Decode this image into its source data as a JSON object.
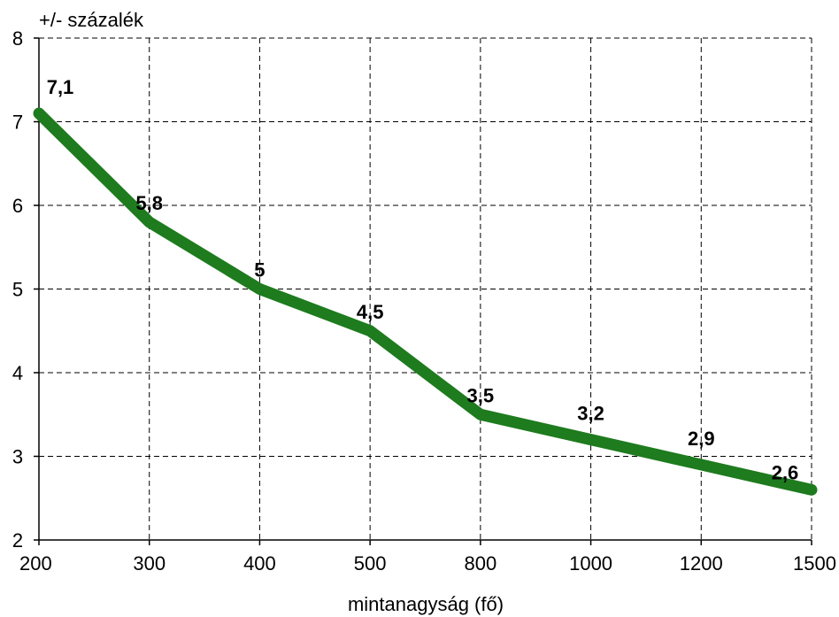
{
  "chart_data": {
    "type": "line",
    "categories": [
      "200",
      "300",
      "400",
      "500",
      "800",
      "1000",
      "1200",
      "1500"
    ],
    "series": [
      {
        "values": [
          7.1,
          5.8,
          5,
          4.5,
          3.5,
          3.2,
          2.9,
          2.6
        ],
        "data_labels": [
          "7,1",
          "5,8",
          "5",
          "4,5",
          "3,5",
          "3,2",
          "2,9",
          "2,6"
        ]
      }
    ],
    "ylabel": "+/- százalék",
    "xlabel": "mintanagyság (fő)",
    "ylim": [
      2,
      8
    ],
    "yticks": [
      "2",
      "3",
      "4",
      "5",
      "6",
      "7",
      "8"
    ],
    "grid": true,
    "legend": "none",
    "line_color": "#1e7b1e"
  }
}
